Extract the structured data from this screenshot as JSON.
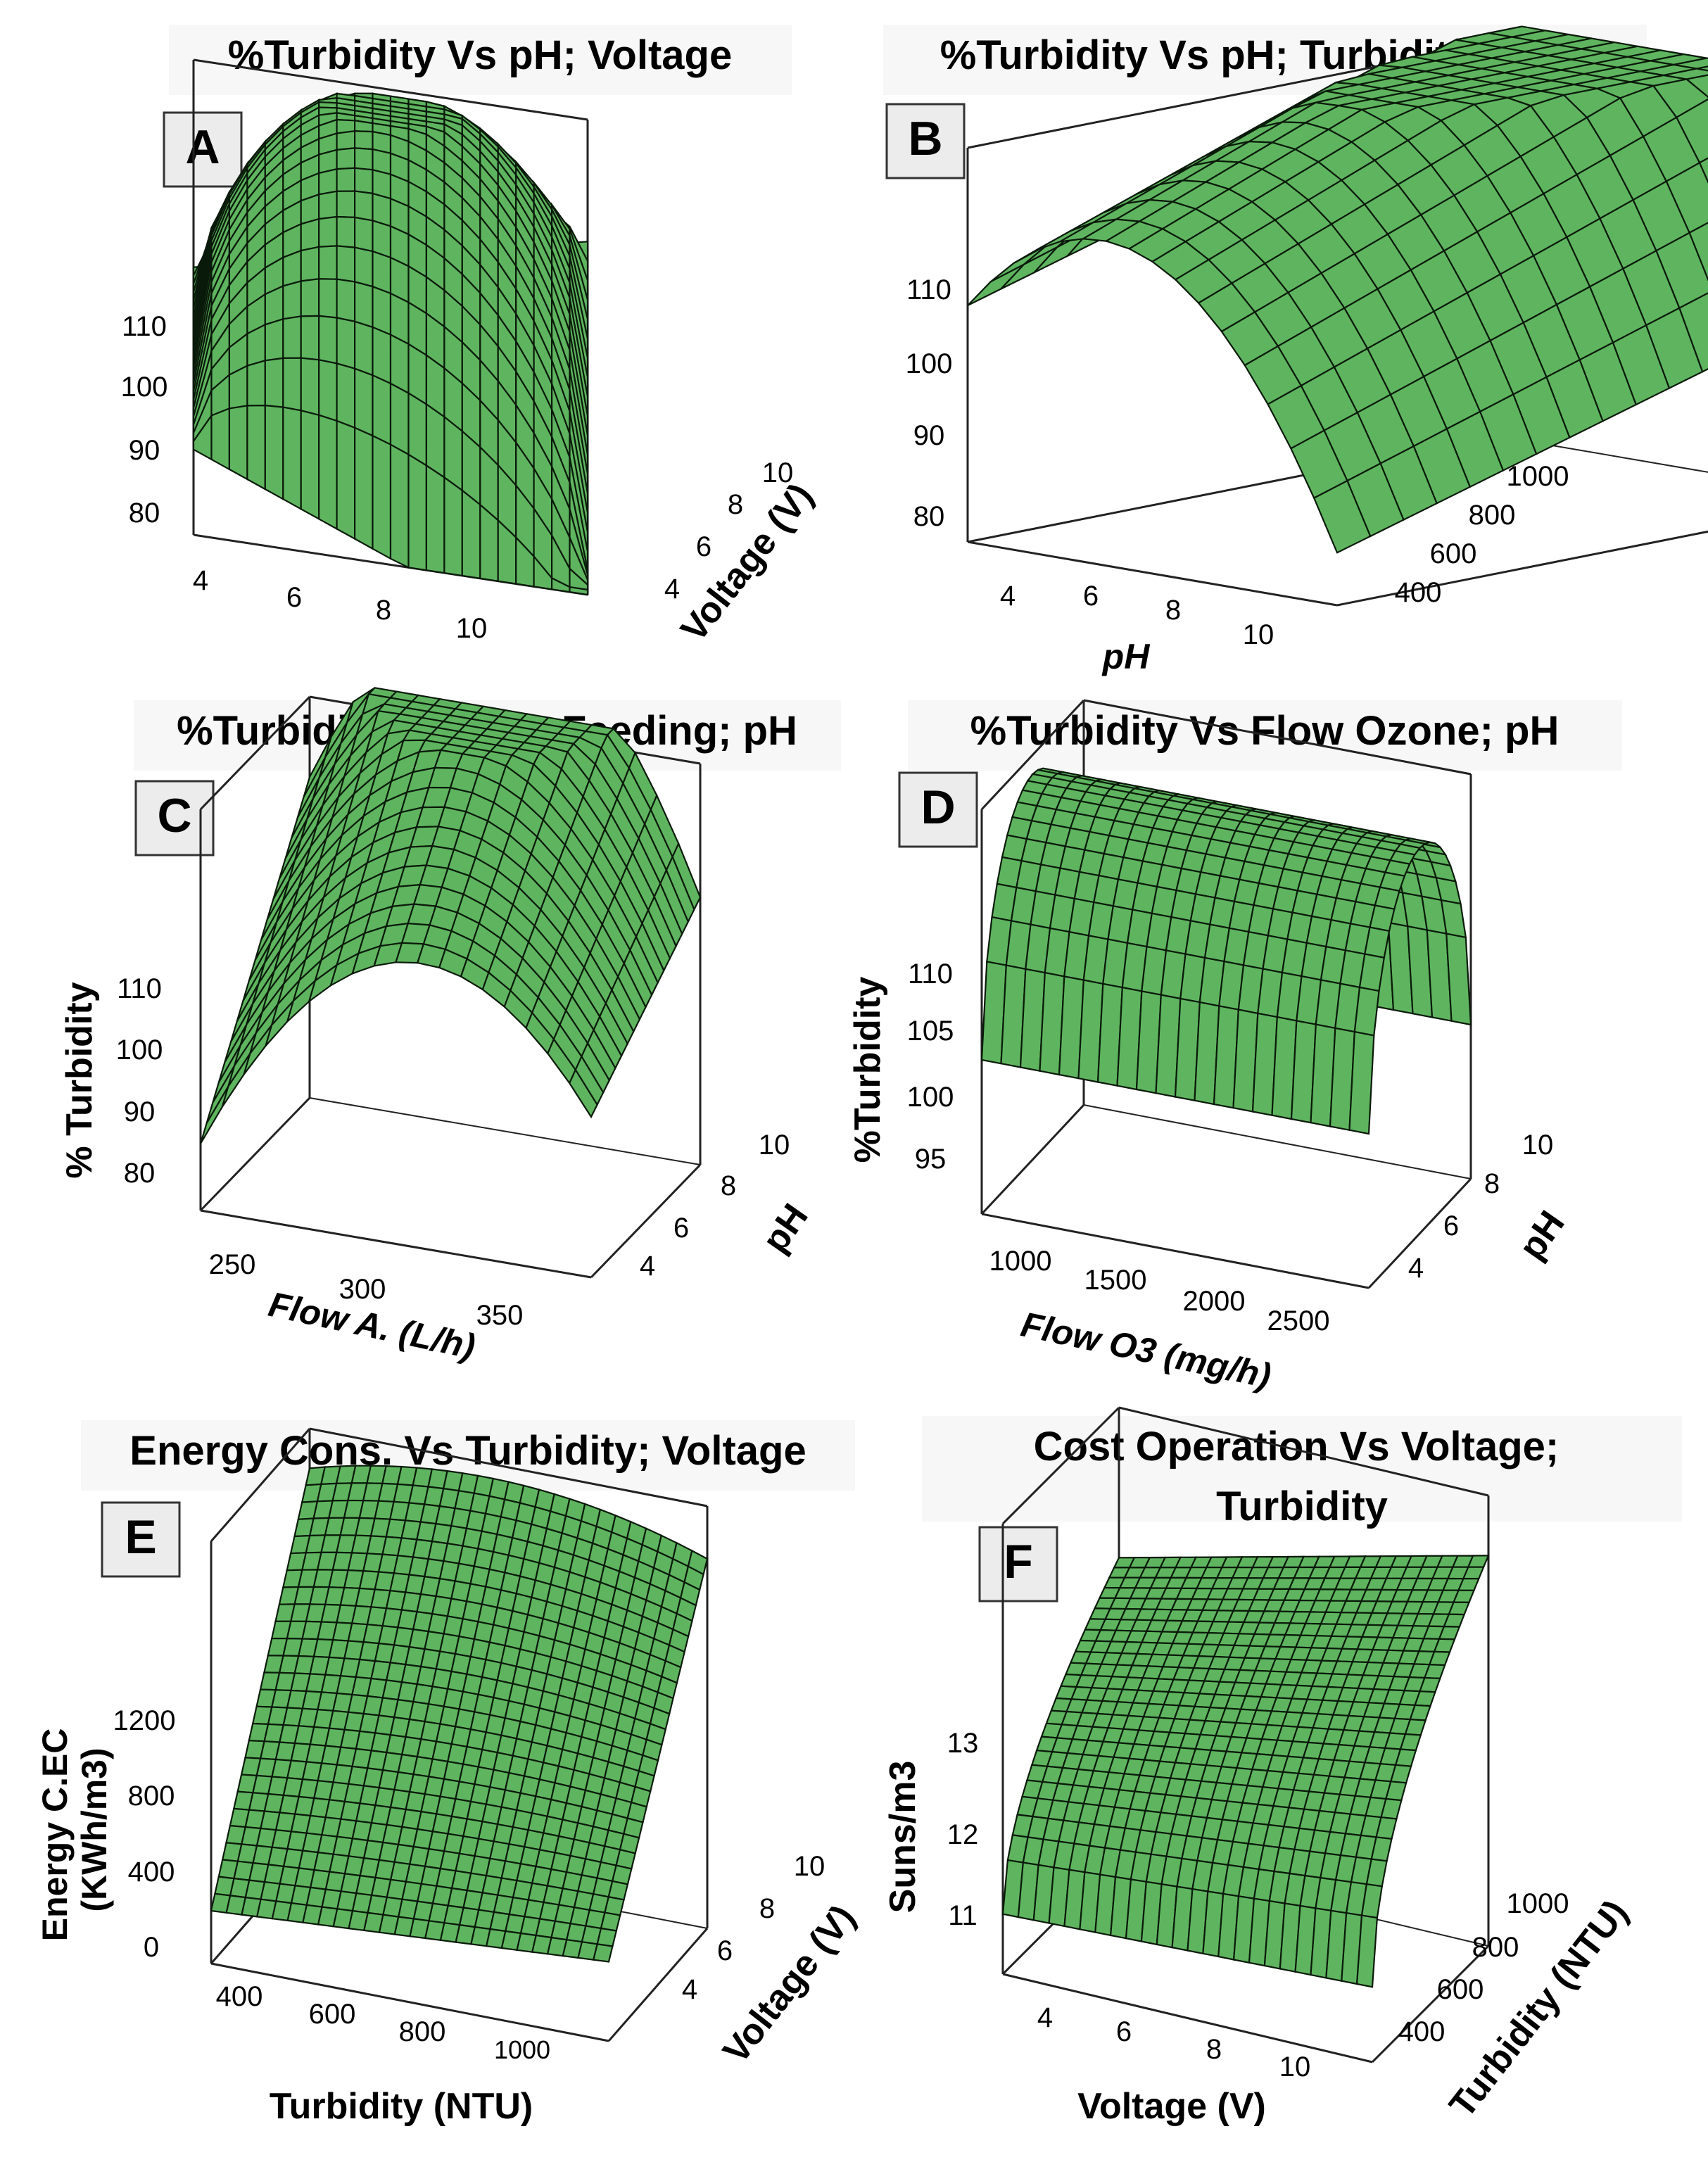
{
  "figure": {
    "colors": {
      "surface": "#5fb55f",
      "surface_dark": "#3f8f3f",
      "mesh": "#0a1a0a",
      "axis": "#222222",
      "letter_box": "#ececec",
      "title_box": "#f7f7f7"
    }
  },
  "chart_data": [
    {
      "panel": "A",
      "type": "surface3d",
      "title": "%Turbidity Vs pH; Voltage",
      "xlabel": "",
      "ylabel": "Voltage (V)",
      "zlabel": "",
      "x_ticks": [
        "4",
        "6",
        "8",
        "10"
      ],
      "y_ticks": [
        "4",
        "6",
        "8",
        "10"
      ],
      "z_ticks": [
        "80",
        "90",
        "100",
        "110"
      ],
      "xlim": [
        4,
        10
      ],
      "ylim": [
        4,
        10
      ],
      "zlim": [
        80,
        110
      ],
      "corner_values": {
        "x4_y4": 87,
        "x10_y4": 74,
        "x4_y10": 93,
        "x10_y10": 100
      },
      "peak_value": 112
    },
    {
      "panel": "B",
      "type": "surface3d",
      "title": "%Turbidity Vs pH; Turbidity initial",
      "xlabel": "pH",
      "ylabel": "",
      "zlabel": "",
      "x_ticks": [
        "4",
        "6",
        "8",
        "10"
      ],
      "y_ticks": [
        "400",
        "600",
        "800",
        "1000"
      ],
      "z_ticks": [
        "80",
        "90",
        "100",
        "110"
      ],
      "xlim": [
        4,
        10
      ],
      "ylim": [
        400,
        1000
      ],
      "zlim": [
        80,
        110
      ],
      "corner_values": {
        "x4_y400": 98,
        "x10_y400": 84,
        "x4_y1000": 110,
        "x10_y1000": 96
      },
      "peak_value": 114
    },
    {
      "panel": "C",
      "type": "surface3d",
      "title": "%Turbidity Vs Flow Feeding; pH",
      "xlabel": "Flow A. (L/h)",
      "ylabel": "pH",
      "zlabel": "% Turbidity",
      "x_ticks": [
        "250",
        "300",
        "350"
      ],
      "y_ticks": [
        "4",
        "6",
        "8",
        "10"
      ],
      "z_ticks": [
        "80",
        "90",
        "100",
        "110"
      ],
      "xlim": [
        220,
        380
      ],
      "ylim": [
        4,
        10
      ],
      "zlim": [
        80,
        110
      ],
      "corner_values": {
        "x220_y4": 85,
        "x380_y4": 92,
        "x220_y10": 104,
        "x380_y10": 100
      },
      "peak_value": 112
    },
    {
      "panel": "D",
      "type": "surface3d",
      "title": "%Turbidity Vs Flow Ozone; pH",
      "xlabel": "Flow O3 (mg/h)",
      "ylabel": "pH",
      "zlabel": "%Turbidity",
      "x_ticks": [
        "1000",
        "1500",
        "2000",
        "2500"
      ],
      "y_ticks": [
        "4",
        "6",
        "8",
        "10"
      ],
      "z_ticks": [
        "95",
        "100",
        "105",
        "110"
      ],
      "xlim": [
        800,
        2700
      ],
      "ylim": [
        4,
        10
      ],
      "zlim": [
        92,
        113
      ],
      "corner_values": {
        "x800_y4": 100,
        "x2700_y4": 100,
        "x800_y10": 100,
        "x2700_y10": 100
      },
      "peak_value": 112
    },
    {
      "panel": "E",
      "type": "surface3d",
      "title": "Energy Cons. Vs Turbidity; Voltage",
      "xlabel": "Turbidity (NTU)",
      "ylabel": "Voltage (V)",
      "zlabel": "Energy C.EC (KWh/m3)",
      "x_ticks": [
        "400",
        "600",
        "800",
        "1000"
      ],
      "y_ticks": [
        "4",
        "6",
        "8",
        "10"
      ],
      "z_ticks": [
        "0",
        "400",
        "800",
        "1200"
      ],
      "xlim": [
        300,
        1100
      ],
      "ylim": [
        3,
        11
      ],
      "zlim": [
        -100,
        1500
      ],
      "corner_values": {
        "x300_y3": 100,
        "x1100_y3": 200,
        "x300_y11": 1350,
        "x1100_y11": 1300
      },
      "peak_value": 1380
    },
    {
      "panel": "F",
      "type": "surface3d",
      "title": "Cost Operation Vs Voltage; Turbidity",
      "xlabel": "Voltage (V)",
      "ylabel": "Turbidity (NTU)",
      "zlabel": "Suns/m3",
      "x_ticks": [
        "4",
        "6",
        "8",
        "10"
      ],
      "y_ticks": [
        "400",
        "600",
        "800",
        "1000"
      ],
      "z_ticks": [
        "11",
        "12",
        "13"
      ],
      "xlim": [
        3,
        11
      ],
      "ylim": [
        300,
        1100
      ],
      "zlim": [
        10.5,
        13.5
      ],
      "corner_values": {
        "x3_y300": 10.9,
        "x11_y300": 11.0,
        "x3_y1100": 12.5,
        "x11_y1100": 13.1
      },
      "peak_value": 13.1
    }
  ]
}
